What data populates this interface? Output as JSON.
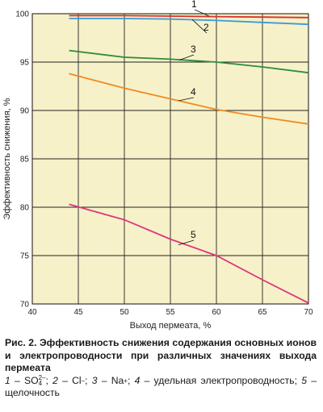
{
  "chart_data": {
    "type": "line",
    "xlabel": "Выход пермеата, %",
    "ylabel": "Эффективность снижения, %",
    "xlim": [
      40,
      70
    ],
    "ylim": [
      70,
      100
    ],
    "x_ticks": [
      "40",
      "45",
      "50",
      "55",
      "60",
      "65",
      "70"
    ],
    "y_ticks": [
      "70",
      "75",
      "80",
      "85",
      "90",
      "95",
      "100"
    ],
    "grid": true,
    "background": "#f6f1c8",
    "series": [
      {
        "name": "1",
        "color": "#d9312b",
        "points": [
          [
            44,
            99.8
          ],
          [
            50,
            99.8
          ],
          [
            55,
            99.75
          ],
          [
            60,
            99.7
          ],
          [
            65,
            99.65
          ],
          [
            70,
            99.6
          ]
        ]
      },
      {
        "name": "2",
        "color": "#3a9ad9",
        "points": [
          [
            44,
            99.5
          ],
          [
            50,
            99.5
          ],
          [
            55,
            99.45
          ],
          [
            60,
            99.3
          ],
          [
            65,
            99.1
          ],
          [
            70,
            98.9
          ]
        ]
      },
      {
        "name": "3",
        "color": "#2e8b3a",
        "points": [
          [
            44,
            96.2
          ],
          [
            50,
            95.5
          ],
          [
            55,
            95.3
          ],
          [
            60,
            95.0
          ],
          [
            65,
            94.5
          ],
          [
            70,
            93.9
          ]
        ]
      },
      {
        "name": "4",
        "color": "#f08a24",
        "points": [
          [
            44,
            93.8
          ],
          [
            50,
            92.3
          ],
          [
            55,
            91.2
          ],
          [
            60,
            90.1
          ],
          [
            65,
            89.3
          ],
          [
            70,
            88.6
          ]
        ]
      },
      {
        "name": "5",
        "color": "#e0357a",
        "points": [
          [
            44,
            80.3
          ],
          [
            50,
            78.7
          ],
          [
            55,
            76.7
          ],
          [
            60,
            75.0
          ],
          [
            65,
            72.5
          ],
          [
            70,
            70.1
          ]
        ]
      }
    ]
  },
  "caption": {
    "title": "Рис. 2. Эффективность снижения содержания основных ионов и электропроводности при различных значениях выхода пермеата",
    "items": [
      {
        "num": "1",
        "text": " – SO",
        "sub": "4",
        "sup": "2–",
        "tail": "; "
      },
      {
        "num": "2",
        "text": " – Cl",
        "sup": "–",
        "tail": "; "
      },
      {
        "num": "3",
        "text": " – Na",
        "sup": "+",
        "tail": "; "
      },
      {
        "num": "4",
        "text": " – удельная электропроводность; ",
        "tail": ""
      },
      {
        "num": "5",
        "text": " – щелочность",
        "tail": ""
      }
    ]
  }
}
